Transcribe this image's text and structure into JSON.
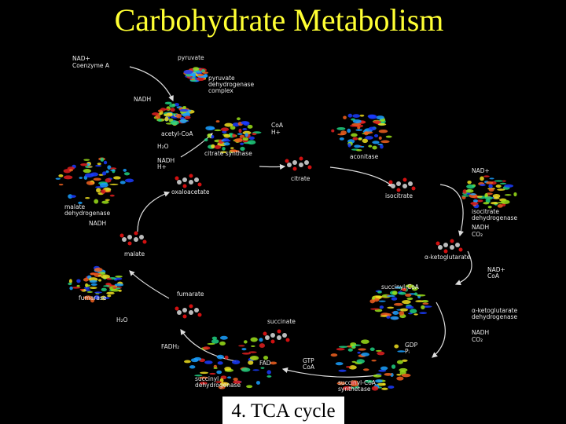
{
  "title": "Carbohydrate Metabolism",
  "caption": "4. TCA cycle",
  "labels": [
    "NAD+",
    "Coenzyme A",
    "pyruvate",
    "pyruvate",
    "dehydrogenase",
    "complex",
    "NADH",
    "acetyl-CoA",
    "H₂O",
    "citrate synthase",
    "CoA",
    "H+",
    "aconitase",
    "NADH",
    "H+",
    "citrate",
    "oxaloacetate",
    "malate",
    "dehydrogenase",
    "NADH",
    "isocitrate",
    "NAD+",
    "isocitrate",
    "dehydrogenase",
    "NADH",
    "CO₂",
    "malate",
    "α-ketoglutarate",
    "NAD+",
    "CoA",
    "succinyl-CoA",
    "fumarate",
    "fumarase",
    "H₂O",
    "succinate",
    "α-ketoglutarate",
    "dehydrogenase",
    "FADH₂",
    "NADH",
    "CO₂",
    "GDP",
    "Pᵢ",
    "FAD",
    "GTP",
    "CoA",
    "succinyl",
    "dehydrogenase",
    "succinyl-CoA",
    "synthetase"
  ]
}
